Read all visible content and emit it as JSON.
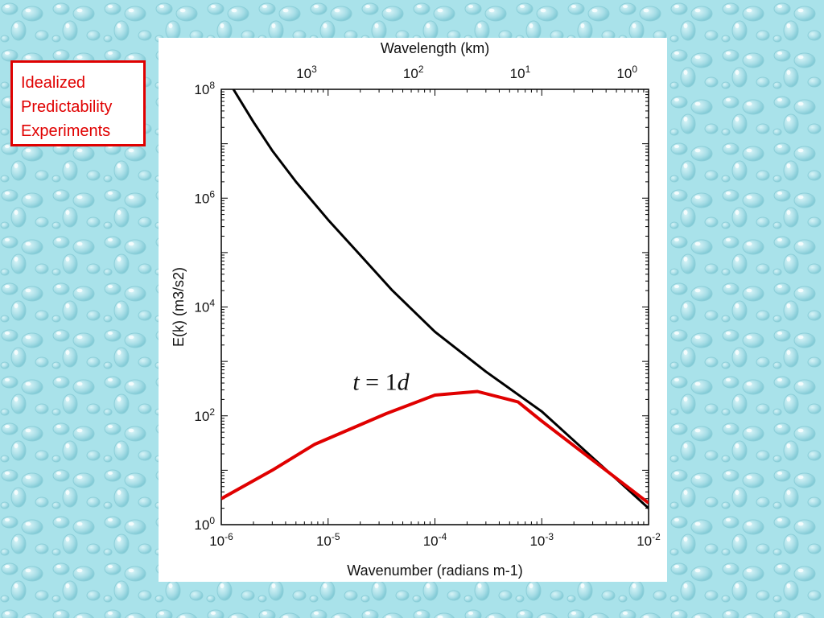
{
  "slide": {
    "title_lines": [
      "Idealized",
      "Predictability",
      "Experiments"
    ],
    "colors": {
      "background": "#a9e2ea",
      "title": "#e00000"
    }
  },
  "chart_data": {
    "type": "line",
    "log_x": true,
    "log_y": true,
    "xlim": [
      1e-06,
      0.01
    ],
    "ylim": [
      1,
      100000000
    ],
    "xlabel": "Wavenumber  (radians m-1)",
    "ylabel": "E(k) (m3/s2)",
    "top_axis_label": "Wavelength  (km)",
    "x_ticks": [
      {
        "base": "10",
        "exp": "-6",
        "value": 1e-06
      },
      {
        "base": "10",
        "exp": "-5",
        "value": 1e-05
      },
      {
        "base": "10",
        "exp": "-4",
        "value": 0.0001
      },
      {
        "base": "10",
        "exp": "-3",
        "value": 0.001
      },
      {
        "base": "10",
        "exp": "-2",
        "value": 0.01
      }
    ],
    "y_ticks": [
      {
        "base": "10",
        "exp": "0",
        "value": 1
      },
      {
        "base": "10",
        "exp": "2",
        "value": 100
      },
      {
        "base": "10",
        "exp": "4",
        "value": 10000
      },
      {
        "base": "10",
        "exp": "6",
        "value": 1000000
      },
      {
        "base": "10",
        "exp": "8",
        "value": 100000000
      }
    ],
    "top_ticks": [
      {
        "base": "10",
        "exp": "3",
        "value": 1000
      },
      {
        "base": "10",
        "exp": "2",
        "value": 100
      },
      {
        "base": "10",
        "exp": "1",
        "value": 10
      },
      {
        "base": "10",
        "exp": "0",
        "value": 1
      }
    ],
    "grid": false,
    "series": [
      {
        "color": "#000000",
        "x": [
          1.3e-06,
          2e-06,
          3e-06,
          5e-06,
          1e-05,
          2e-05,
          4e-05,
          0.0001,
          0.0003,
          0.001,
          0.003,
          0.01
        ],
        "y": [
          100000000,
          25000000,
          7500000,
          2000000,
          400000,
          90000,
          20000,
          3500,
          650,
          120,
          17,
          2
        ]
      },
      {
        "color": "#e00000",
        "x": [
          1e-06,
          3e-06,
          7.5e-06,
          3.5e-05,
          0.0001,
          0.00025,
          0.0006,
          0.001,
          0.01
        ],
        "y": [
          3,
          10,
          30,
          110,
          240,
          280,
          180,
          80,
          2.5
        ]
      }
    ],
    "annotations": [
      {
        "parts": [
          "t",
          " = 1",
          "d"
        ],
        "x": 1.7e-05,
        "y": 300
      }
    ]
  }
}
